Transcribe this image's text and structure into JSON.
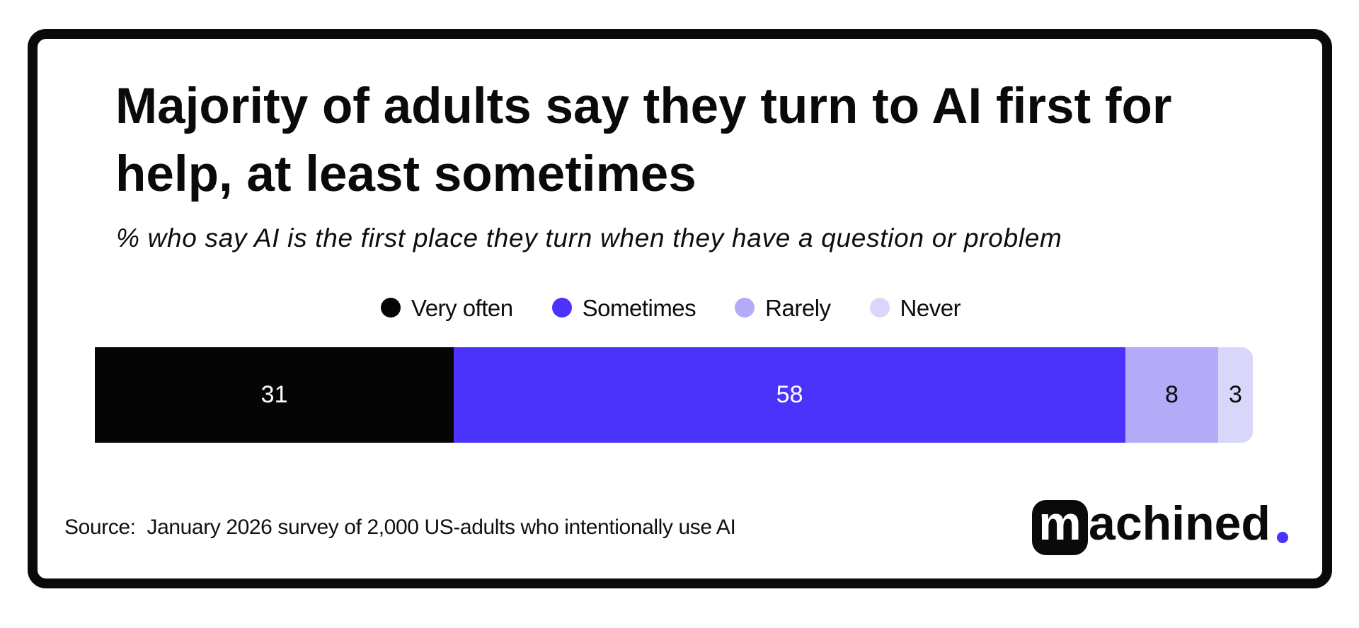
{
  "title": "Majority of adults say they turn to AI first for help, at least sometimes",
  "subtitle": "% who say AI is the first place they turn when they have a question or problem",
  "source": {
    "label": "Source:",
    "text": "January 2026 survey of 2,000 US-adults who intentionally use AI"
  },
  "logo": {
    "m": "m",
    "rest": "achined",
    "dot_color": "#4b33fb"
  },
  "colors": {
    "background": "#ffffff",
    "frame": "#0a0a0a",
    "text": "#0a0a0a",
    "accent_purple": "#4b33fb"
  },
  "chart_data": {
    "type": "bar",
    "stacked": true,
    "orientation": "horizontal",
    "title": "Majority of adults say they turn to AI first for help, at least sometimes",
    "subtitle": "% who say AI is the first place they turn when they have a question or problem",
    "categories": [
      "Very often",
      "Sometimes",
      "Rarely",
      "Never"
    ],
    "values": [
      31,
      58,
      8,
      3
    ],
    "unit": "% of US adults",
    "xlim": [
      0,
      100
    ],
    "legend_position": "top",
    "grid": false,
    "series_colors": [
      "#050505",
      "#4b33fb",
      "#b3aaf8",
      "#d9d6fb"
    ],
    "value_label_colors": [
      "#ffffff",
      "#ffffff",
      "#0a0a0a",
      "#0a0a0a"
    ]
  }
}
